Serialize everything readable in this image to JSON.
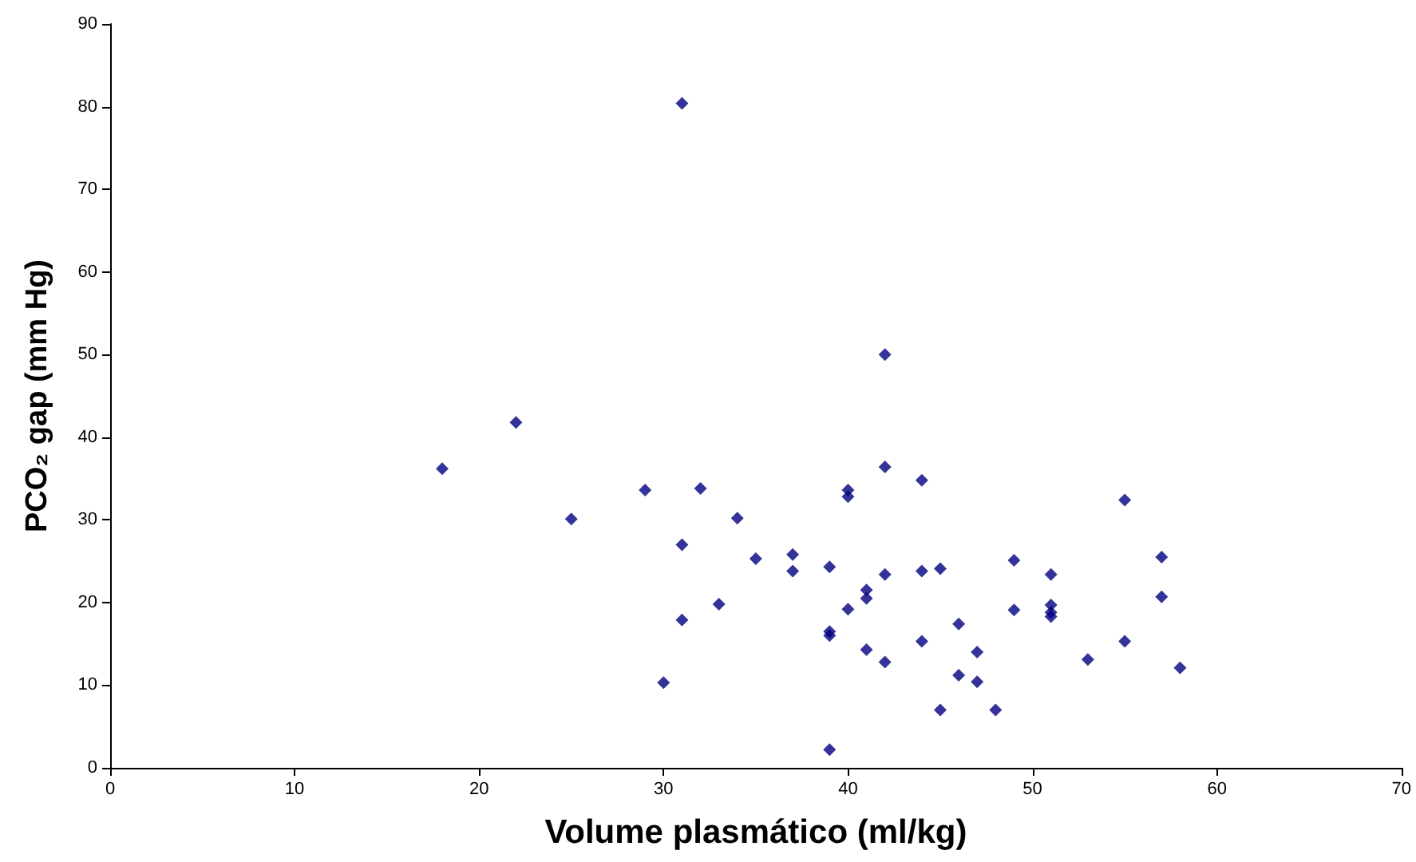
{
  "chart_data": {
    "type": "scatter",
    "xlabel": "Volume plasmático (ml/kg)",
    "ylabel": "PCO₂ gap (mm Hg)",
    "x": [
      18,
      22,
      25,
      29,
      30,
      31,
      31,
      31,
      32,
      33,
      34,
      35,
      37,
      37,
      39,
      39,
      39,
      39,
      40,
      40,
      40,
      41,
      41,
      41,
      42,
      42,
      42,
      42,
      44,
      44,
      44,
      45,
      45,
      46,
      46,
      47,
      47,
      48,
      49,
      49,
      51,
      51,
      51,
      51,
      53,
      55,
      55,
      57,
      57,
      58
    ],
    "series": [
      {
        "color": "#000080",
        "values": [
          36.2,
          41.8,
          30.1,
          33.6,
          10.3,
          80.4,
          27,
          17.9,
          33.8,
          19.8,
          30.2,
          25.3,
          25.8,
          23.8,
          24.3,
          16.5,
          16,
          2.2,
          33.6,
          32.8,
          19.2,
          21.5,
          20.5,
          14.3,
          50,
          36.4,
          23.4,
          12.8,
          34.8,
          23.8,
          15.3,
          24.1,
          7,
          17.4,
          11.2,
          14,
          10.4,
          7,
          25.1,
          19.1,
          23.4,
          19.7,
          18.8,
          18.3,
          13.1,
          32.4,
          15.3,
          25.5,
          20.7,
          12.1
        ]
      }
    ],
    "xlim": [
      0,
      70
    ],
    "xticks": [
      0,
      10,
      20,
      30,
      40,
      50,
      60,
      70
    ],
    "ylim": [
      0,
      90
    ],
    "yticks": [
      0,
      10,
      20,
      30,
      40,
      50,
      60,
      70,
      80,
      90
    ],
    "grid": false,
    "marker": "diamond"
  }
}
